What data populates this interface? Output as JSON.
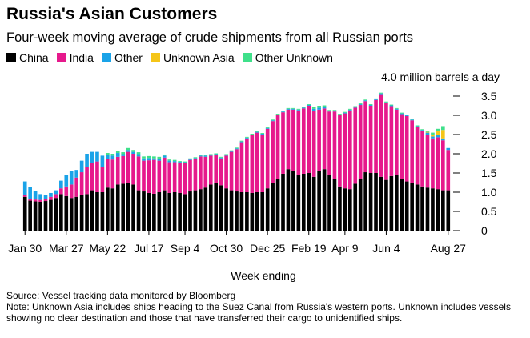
{
  "chart_data": {
    "type": "bar",
    "stacked": true,
    "title": "Russia's Asian Customers",
    "subtitle": "Four-week moving average of crude shipments from all Russian ports",
    "ylabel": "4.0 million barrels a day",
    "xlabel": "Week ending",
    "ylim": [
      0,
      4.0
    ],
    "yticks": [
      0,
      0.5,
      1.0,
      1.5,
      2.0,
      2.5,
      3.0,
      3.5
    ],
    "ytick_labels": [
      "0",
      "0.5",
      "1.0",
      "1.5",
      "2.0",
      "2.5",
      "3.0",
      "3.5"
    ],
    "xtick_labels": [
      "Jan 30",
      "Mar 27",
      "May 22",
      "Jul 17",
      "Sep 4",
      "Oct 30",
      "Dec 25",
      "Feb 19",
      "Apr 9",
      "Jun 4",
      "Aug 27"
    ],
    "xtick_indices": [
      0,
      8,
      16,
      24,
      31,
      39,
      47,
      55,
      62,
      70,
      82
    ],
    "legend_position": "top-left",
    "grid": false,
    "series": [
      {
        "name": "China",
        "color": "#000000",
        "values": [
          0.88,
          0.78,
          0.76,
          0.75,
          0.77,
          0.8,
          0.85,
          0.95,
          0.9,
          0.85,
          0.88,
          0.92,
          0.95,
          1.05,
          1.0,
          1.0,
          1.12,
          1.1,
          1.2,
          1.22,
          1.25,
          1.2,
          1.05,
          1.02,
          0.98,
          0.96,
          1.0,
          1.05,
          0.98,
          1.0,
          0.98,
          0.95,
          1.02,
          1.05,
          1.08,
          1.12,
          1.2,
          1.25,
          1.18,
          1.1,
          1.05,
          1.02,
          1.0,
          1.0,
          0.98,
          1.0,
          1.0,
          1.1,
          1.25,
          1.35,
          1.48,
          1.6,
          1.55,
          1.45,
          1.48,
          1.5,
          1.4,
          1.55,
          1.6,
          1.45,
          1.35,
          1.15,
          1.1,
          1.08,
          1.22,
          1.35,
          1.52,
          1.5,
          1.5,
          1.4,
          1.32,
          1.42,
          1.45,
          1.35,
          1.28,
          1.25,
          1.2,
          1.15,
          1.12,
          1.1,
          1.08,
          1.05,
          1.05
        ]
      },
      {
        "name": "India",
        "color": "#e6198c",
        "values": [
          0.05,
          0.05,
          0.05,
          0.05,
          0.05,
          0.08,
          0.1,
          0.15,
          0.25,
          0.35,
          0.5,
          0.6,
          0.7,
          0.7,
          0.8,
          0.65,
          0.75,
          0.75,
          0.72,
          0.72,
          0.8,
          0.8,
          0.88,
          0.8,
          0.85,
          0.88,
          0.82,
          0.85,
          0.8,
          0.78,
          0.78,
          0.8,
          0.82,
          0.82,
          0.85,
          0.8,
          0.75,
          0.72,
          0.7,
          0.85,
          1.0,
          1.1,
          1.3,
          1.4,
          1.5,
          1.55,
          1.5,
          1.55,
          1.6,
          1.65,
          1.6,
          1.55,
          1.6,
          1.68,
          1.7,
          1.75,
          1.72,
          1.6,
          1.58,
          1.65,
          1.75,
          1.85,
          1.95,
          2.05,
          1.98,
          1.92,
          1.85,
          1.75,
          1.9,
          2.15,
          2.0,
          1.82,
          1.7,
          1.68,
          1.7,
          1.62,
          1.5,
          1.45,
          1.38,
          1.3,
          1.35,
          1.3,
          1.05
        ]
      },
      {
        "name": "Other",
        "color": "#1aa3e8",
        "values": [
          0.35,
          0.3,
          0.22,
          0.15,
          0.1,
          0.1,
          0.1,
          0.2,
          0.3,
          0.35,
          0.2,
          0.3,
          0.35,
          0.3,
          0.25,
          0.3,
          0.1,
          0.1,
          0.1,
          0.05,
          0.05,
          0.05,
          0.06,
          0.06,
          0.06,
          0.04,
          0.05,
          0.05,
          0.04,
          0.03,
          0.03,
          0.03,
          0.02,
          0.02,
          0.02,
          0.03,
          0.02,
          0.02,
          0.02,
          0.02,
          0.02,
          0.02,
          0.02,
          0.02,
          0.02,
          0.02,
          0.02,
          0.02,
          0.02,
          0.02,
          0.02,
          0.02,
          0.02,
          0.02,
          0.02,
          0.02,
          0.05,
          0.05,
          0.03,
          0.02,
          0.02,
          0.02,
          0.02,
          0.02,
          0.02,
          0.02,
          0.02,
          0.02,
          0.02,
          0.02,
          0.02,
          0.02,
          0.02,
          0.02,
          0.02,
          0.02,
          0.02,
          0.02,
          0.05,
          0.05,
          0.05,
          0.05,
          0.05
        ]
      },
      {
        "name": "Unknown Asia",
        "color": "#f5c518",
        "values": [
          0,
          0,
          0,
          0,
          0,
          0,
          0,
          0,
          0,
          0,
          0,
          0,
          0,
          0,
          0,
          0,
          0,
          0,
          0,
          0,
          0,
          0,
          0,
          0,
          0,
          0,
          0,
          0,
          0,
          0,
          0,
          0,
          0,
          0,
          0,
          0,
          0,
          0,
          0,
          0,
          0,
          0,
          0,
          0,
          0,
          0,
          0,
          0,
          0,
          0,
          0,
          0,
          0,
          0,
          0,
          0,
          0,
          0,
          0,
          0,
          0,
          0,
          0,
          0,
          0,
          0,
          0,
          0,
          0,
          0,
          0,
          0,
          0,
          0,
          0,
          0,
          0,
          0,
          0.02,
          0.05,
          0.12,
          0.22,
          0.0
        ]
      },
      {
        "name": "Other Unknown",
        "color": "#3fe08a",
        "values": [
          0,
          0,
          0,
          0,
          0,
          0,
          0,
          0,
          0,
          0,
          0,
          0,
          0,
          0,
          0,
          0,
          0.05,
          0.05,
          0.05,
          0.05,
          0.05,
          0.05,
          0.05,
          0.05,
          0.05,
          0.05,
          0.05,
          0.03,
          0.03,
          0.03,
          0.02,
          0.02,
          0.02,
          0.02,
          0.02,
          0.02,
          0.02,
          0.02,
          0.02,
          0.02,
          0.02,
          0.02,
          0.02,
          0.02,
          0.02,
          0.02,
          0.02,
          0.02,
          0.02,
          0.02,
          0.02,
          0.02,
          0.02,
          0.02,
          0.02,
          0.02,
          0.05,
          0.05,
          0.05,
          0.02,
          0.02,
          0.02,
          0.02,
          0.02,
          0.02,
          0.02,
          0.02,
          0.02,
          0.02,
          0.02,
          0.02,
          0.02,
          0.02,
          0.02,
          0.02,
          0.02,
          0.02,
          0.02,
          0.02,
          0.05,
          0.05,
          0.1,
          0.0
        ]
      }
    ]
  },
  "source_text": "Source: Vessel tracking data monitored by Bloomberg",
  "note_text": "Note: Unknown Asia includes ships heading to the Suez Canal from Russia's western ports. Unknown includes vessels showing no clear destination and those that have transferred their cargo to unidentified ships."
}
